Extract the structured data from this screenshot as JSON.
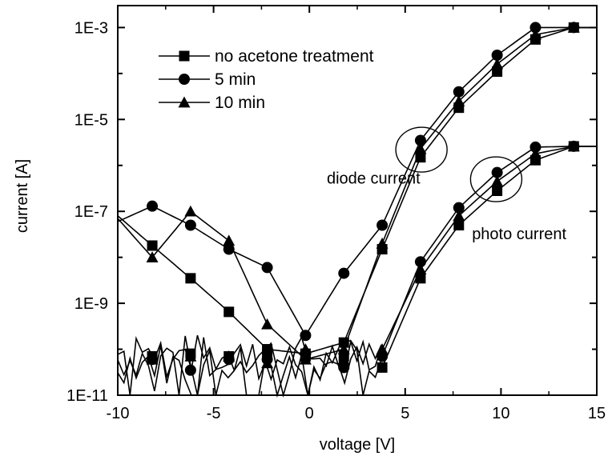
{
  "chart_data": {
    "type": "line",
    "title": "",
    "xlabel": "voltage [V]",
    "ylabel": "current [A]",
    "xlim": [
      -10,
      15
    ],
    "ylim": [
      1e-11,
      0.003
    ],
    "y_scale": "log",
    "x_ticks": [
      -10,
      -5,
      0,
      5,
      10,
      15
    ],
    "x_tick_labels": [
      "-10",
      "-5",
      "0",
      "5",
      "10",
      "15"
    ],
    "y_ticks": [
      1e-11,
      1e-09,
      1e-07,
      1e-05,
      0.001
    ],
    "y_tick_labels": [
      "1E-11",
      "1E-9",
      "1E-7",
      "1E-5",
      "1E-3"
    ],
    "legend_position": "top-left",
    "series": [
      {
        "name": "no acetone treatment",
        "marker": "square",
        "diode": {
          "x": [
            -10,
            -8.2,
            -6.2,
            -4.2,
            -2.2,
            -0.2,
            1.8,
            3.8,
            5.8,
            7.8,
            9.8,
            11.8,
            13.8,
            15
          ],
          "y": [
            8e-08,
            1.8e-08,
            3.5e-09,
            6.5e-10,
            1e-10,
            8e-11,
            1.4e-10,
            1.5e-08,
            1.5e-06,
            1.8e-05,
            0.00011,
            0.00055,
            0.001,
            0.001
          ],
          "marker_x": [
            -8.2,
            -6.2,
            -4.2,
            -2.2,
            -0.2,
            1.8,
            3.8,
            5.8,
            7.8,
            9.8,
            11.8,
            13.8
          ]
        },
        "dark": {
          "x": [
            -10,
            -8.2,
            -6.2,
            -4.2,
            -2.2,
            -0.2,
            1.8,
            3.8
          ],
          "y": [
            6e-11,
            7e-11,
            8e-11,
            7e-11,
            8e-11,
            7e-11,
            7e-11,
            4e-11
          ],
          "marker_x": [
            -8.2,
            -6.2,
            -4.2,
            -2.2,
            -0.2,
            1.8,
            3.8
          ]
        },
        "photo": {
          "x": [
            3.8,
            5.8,
            7.8,
            9.8,
            11.8,
            13.8,
            15
          ],
          "y": [
            4e-11,
            3.5e-09,
            5e-08,
            2.8e-07,
            1.3e-06,
            2.6e-06,
            2.6e-06
          ],
          "marker_x": [
            5.8,
            7.8,
            9.8,
            11.8,
            13.8
          ]
        }
      },
      {
        "name": "5 min",
        "marker": "circle",
        "diode": {
          "x": [
            -10,
            -8.2,
            -6.2,
            -4.2,
            -2.2,
            -0.2,
            1.8,
            3.8,
            5.8,
            7.8,
            9.8,
            11.8,
            13.8,
            15
          ],
          "y": [
            6e-08,
            1.3e-07,
            5e-08,
            1.5e-08,
            6e-09,
            2e-10,
            4.5e-09,
            5e-08,
            3.5e-06,
            4e-05,
            0.00025,
            0.001,
            0.001,
            0.001
          ],
          "marker_x": [
            -8.2,
            -6.2,
            -4.2,
            -2.2,
            -0.2,
            1.8,
            3.8,
            5.8,
            7.8,
            9.8,
            11.8,
            13.8
          ]
        },
        "dark": {
          "x": [
            -10,
            -8.2,
            -6.2,
            -4.2,
            -2.2,
            -0.2,
            1.8,
            3.8
          ],
          "y": [
            5e-11,
            6e-11,
            3.5e-11,
            6e-11,
            6e-11,
            8e-11,
            4e-11,
            7e-11
          ],
          "marker_x": [
            -8.2,
            -6.2,
            -4.2,
            -2.2,
            -0.2,
            1.8,
            3.8
          ]
        },
        "photo": {
          "x": [
            3.8,
            5.8,
            7.8,
            9.8,
            11.8,
            13.8,
            15
          ],
          "y": [
            7e-11,
            8e-09,
            1.2e-07,
            7e-07,
            2.5e-06,
            2.6e-06,
            2.6e-06
          ],
          "marker_x": [
            5.8,
            7.8,
            9.8,
            11.8,
            13.8
          ]
        }
      },
      {
        "name": "10 min",
        "marker": "triangle",
        "diode": {
          "x": [
            -10,
            -8.2,
            -6.2,
            -4.2,
            -2.2,
            -0.2,
            1.8,
            3.8,
            5.8,
            7.8,
            9.8,
            11.8,
            13.8,
            15
          ],
          "y": [
            7e-08,
            1e-08,
            1e-07,
            2.3e-08,
            3.5e-10,
            6e-11,
            1e-10,
            2e-08,
            2.3e-06,
            2.5e-05,
            0.00016,
            0.0007,
            0.001,
            0.001
          ],
          "marker_x": [
            -8.2,
            -6.2,
            -4.2,
            -2.2,
            -0.2,
            1.8,
            3.8,
            5.8,
            7.8,
            9.8,
            11.8,
            13.8
          ]
        },
        "dark": {
          "x": [
            -10,
            -8.2,
            -6.2,
            -4.2,
            -2.2,
            -0.2,
            1.8,
            3.8
          ],
          "y": [
            7e-11,
            6e-11,
            7e-11,
            7e-11,
            5e-11,
            1e-10,
            6e-11,
            1e-10
          ],
          "marker_x": [
            -8.2,
            -6.2,
            -4.2,
            -2.2,
            -0.2,
            1.8,
            3.8
          ]
        },
        "photo": {
          "x": [
            3.8,
            5.8,
            7.8,
            9.8,
            11.8,
            13.8,
            15
          ],
          "y": [
            1e-10,
            5.5e-09,
            8e-08,
            4.5e-07,
            1.8e-06,
            2.6e-06,
            2.6e-06
          ],
          "marker_x": [
            5.8,
            7.8,
            9.8,
            11.8,
            13.8
          ]
        }
      }
    ],
    "annotations": [
      {
        "text": "diode current",
        "x": 3.35,
        "y": 4e-07,
        "circle_center": [
          5.85,
          2.2e-06
        ]
      },
      {
        "text": "photo current",
        "x": 10.95,
        "y": 2.5e-08,
        "circle_center": [
          9.75,
          5e-07
        ]
      }
    ]
  }
}
